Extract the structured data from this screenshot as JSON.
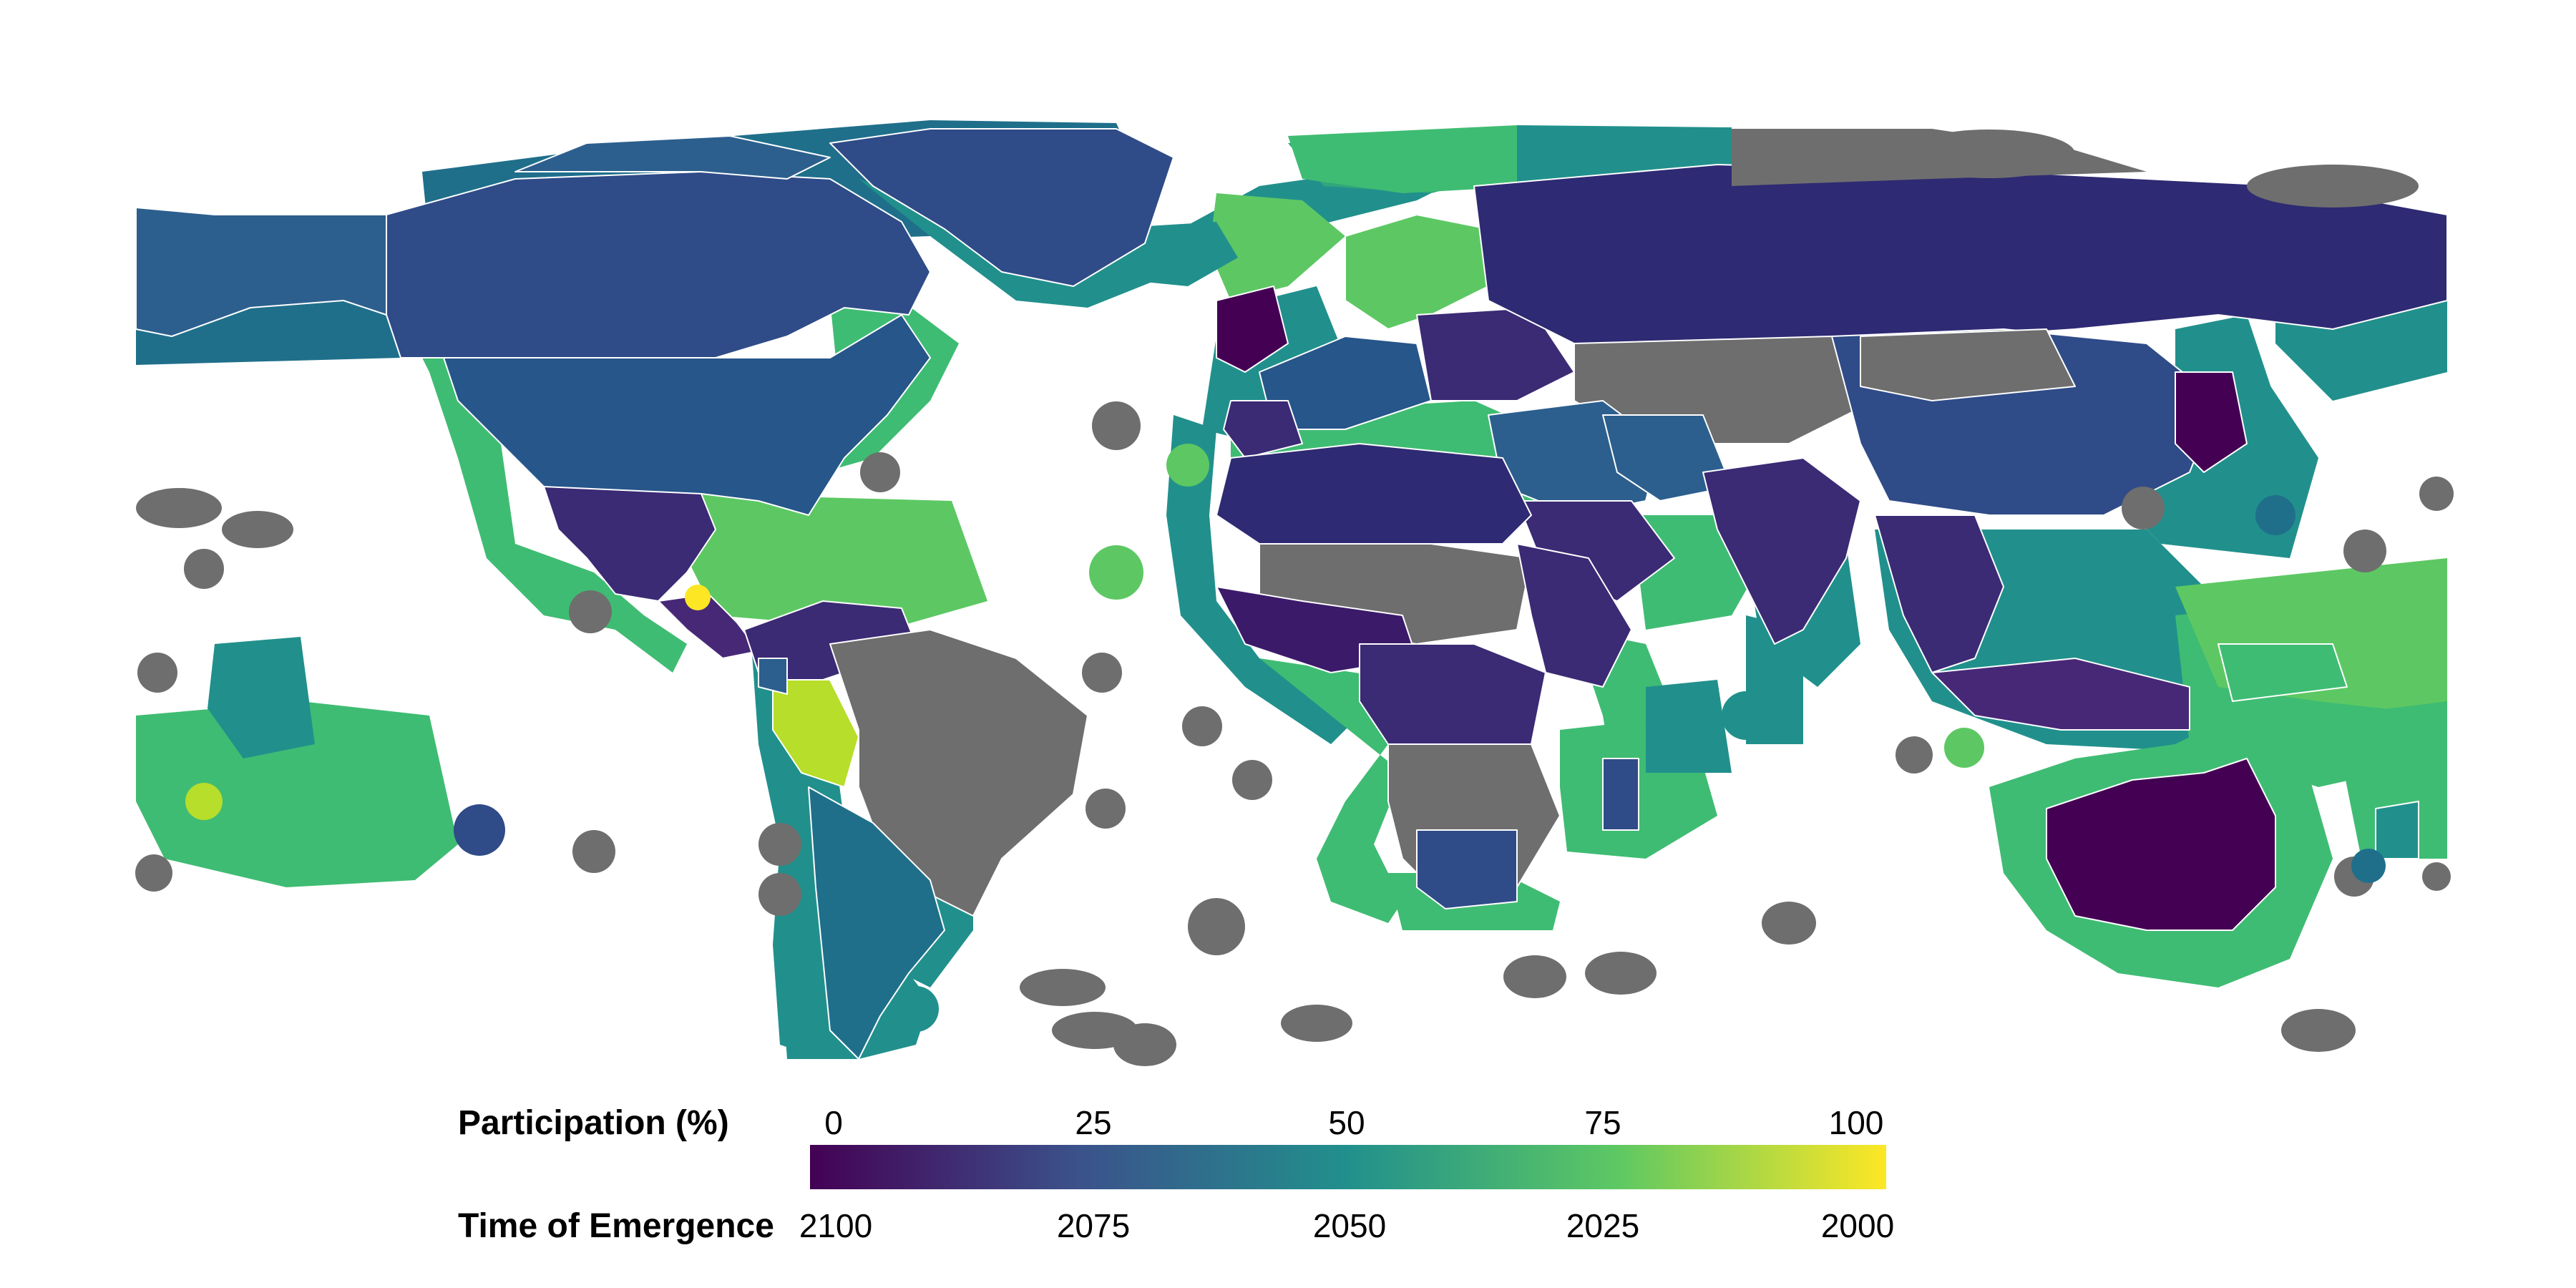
{
  "legend": {
    "participation_title": "Participation (%)",
    "emergence_title": "Time of Emergence",
    "participation_ticks": [
      "0",
      "25",
      "50",
      "75",
      "100"
    ],
    "emergence_ticks": [
      "2100",
      "2075",
      "2050",
      "2025",
      "2000"
    ],
    "scale": "viridis",
    "colors": [
      "#440154",
      "#3b528b",
      "#21908c",
      "#5dc863",
      "#fde725"
    ]
  },
  "colors": {
    "no_data": "#6e6e6e",
    "background": "#ffffff",
    "border": "#ffffff"
  }
}
